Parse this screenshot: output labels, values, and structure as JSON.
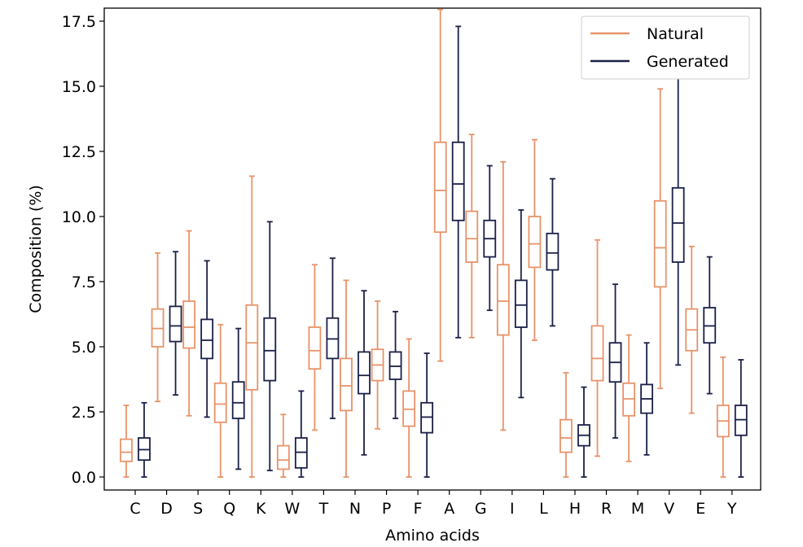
{
  "chart_data": {
    "type": "box",
    "xlabel": "Amino acids",
    "ylabel": "Composition (%)",
    "ylim": [
      -0.5,
      18.0
    ],
    "yticks": [
      "0.0",
      "2.5",
      "5.0",
      "7.5",
      "10.0",
      "12.5",
      "15.0",
      "17.5"
    ],
    "categories": [
      "C",
      "D",
      "S",
      "Q",
      "K",
      "W",
      "T",
      "N",
      "P",
      "F",
      "A",
      "G",
      "I",
      "L",
      "H",
      "R",
      "M",
      "V",
      "E",
      "Y"
    ],
    "legend_position": "top-right",
    "grid": false,
    "series": [
      {
        "name": "Natural",
        "color": "#E8936A",
        "boxes": [
          {
            "min": 0.0,
            "q1": 0.6,
            "median": 0.95,
            "q3": 1.45,
            "max": 2.75
          },
          {
            "min": 2.9,
            "q1": 5.0,
            "median": 5.7,
            "q3": 6.45,
            "max": 8.6
          },
          {
            "min": 2.35,
            "q1": 4.95,
            "median": 5.75,
            "q3": 6.75,
            "max": 9.45
          },
          {
            "min": 0.0,
            "q1": 2.1,
            "median": 2.8,
            "q3": 3.6,
            "max": 5.85
          },
          {
            "min": 0.0,
            "q1": 3.35,
            "median": 5.15,
            "q3": 6.6,
            "max": 11.55
          },
          {
            "min": 0.0,
            "q1": 0.3,
            "median": 0.65,
            "q3": 1.2,
            "max": 2.4
          },
          {
            "min": 1.8,
            "q1": 4.15,
            "median": 4.85,
            "q3": 5.75,
            "max": 8.15
          },
          {
            "min": 0.0,
            "q1": 2.55,
            "median": 3.5,
            "q3": 4.55,
            "max": 7.55
          },
          {
            "min": 1.85,
            "q1": 3.7,
            "median": 4.3,
            "q3": 4.9,
            "max": 6.75
          },
          {
            "min": 0.0,
            "q1": 1.95,
            "median": 2.6,
            "q3": 3.3,
            "max": 5.3
          },
          {
            "min": 4.45,
            "q1": 9.4,
            "median": 11.0,
            "q3": 12.85,
            "max": 17.95
          },
          {
            "min": 5.35,
            "q1": 8.25,
            "median": 9.15,
            "q3": 10.2,
            "max": 13.15
          },
          {
            "min": 1.8,
            "q1": 5.45,
            "median": 6.75,
            "q3": 8.15,
            "max": 12.1
          },
          {
            "min": 5.25,
            "q1": 8.05,
            "median": 8.95,
            "q3": 10.0,
            "max": 12.95
          },
          {
            "min": 0.0,
            "q1": 0.95,
            "median": 1.5,
            "q3": 2.2,
            "max": 4.0
          },
          {
            "min": 0.8,
            "q1": 3.7,
            "median": 4.55,
            "q3": 5.8,
            "max": 9.1
          },
          {
            "min": 0.6,
            "q1": 2.35,
            "median": 3.0,
            "q3": 3.6,
            "max": 5.45
          },
          {
            "min": 3.4,
            "q1": 7.3,
            "median": 8.8,
            "q3": 10.6,
            "max": 14.9
          },
          {
            "min": 2.45,
            "q1": 4.85,
            "median": 5.65,
            "q3": 6.45,
            "max": 8.85
          },
          {
            "min": 0.0,
            "q1": 1.55,
            "median": 2.15,
            "q3": 2.75,
            "max": 4.6
          }
        ]
      },
      {
        "name": "Generated",
        "color": "#1B2048",
        "boxes": [
          {
            "min": 0.0,
            "q1": 0.65,
            "median": 1.05,
            "q3": 1.5,
            "max": 2.85
          },
          {
            "min": 3.15,
            "q1": 5.2,
            "median": 5.8,
            "q3": 6.55,
            "max": 8.65
          },
          {
            "min": 2.3,
            "q1": 4.55,
            "median": 5.25,
            "q3": 6.05,
            "max": 8.3
          },
          {
            "min": 0.3,
            "q1": 2.25,
            "median": 2.85,
            "q3": 3.65,
            "max": 5.7
          },
          {
            "min": 0.25,
            "q1": 3.7,
            "median": 4.85,
            "q3": 6.1,
            "max": 9.8
          },
          {
            "min": 0.0,
            "q1": 0.35,
            "median": 0.95,
            "q3": 1.5,
            "max": 3.3
          },
          {
            "min": 2.25,
            "q1": 4.55,
            "median": 5.3,
            "q3": 6.1,
            "max": 8.4
          },
          {
            "min": 0.85,
            "q1": 3.2,
            "median": 3.9,
            "q3": 4.8,
            "max": 7.15
          },
          {
            "min": 2.25,
            "q1": 3.75,
            "median": 4.25,
            "q3": 4.8,
            "max": 6.35
          },
          {
            "min": 0.0,
            "q1": 1.7,
            "median": 2.3,
            "q3": 2.85,
            "max": 4.75
          },
          {
            "min": 5.35,
            "q1": 9.85,
            "median": 11.25,
            "q3": 12.85,
            "max": 17.3
          },
          {
            "min": 6.4,
            "q1": 8.45,
            "median": 9.15,
            "q3": 9.85,
            "max": 11.95
          },
          {
            "min": 3.05,
            "q1": 5.75,
            "median": 6.6,
            "q3": 7.55,
            "max": 10.25
          },
          {
            "min": 5.8,
            "q1": 7.95,
            "median": 8.6,
            "q3": 9.35,
            "max": 11.45
          },
          {
            "min": 0.0,
            "q1": 1.2,
            "median": 1.6,
            "q3": 2.0,
            "max": 3.45
          },
          {
            "min": 1.5,
            "q1": 3.65,
            "median": 4.4,
            "q3": 5.15,
            "max": 7.4
          },
          {
            "min": 0.85,
            "q1": 2.45,
            "median": 3.0,
            "q3": 3.55,
            "max": 5.15
          },
          {
            "min": 4.3,
            "q1": 8.25,
            "median": 9.75,
            "q3": 11.1,
            "max": 15.3
          },
          {
            "min": 3.2,
            "q1": 5.15,
            "median": 5.8,
            "q3": 6.5,
            "max": 8.45
          },
          {
            "min": 0.0,
            "q1": 1.6,
            "median": 2.2,
            "q3": 2.75,
            "max": 4.5
          }
        ]
      }
    ]
  }
}
